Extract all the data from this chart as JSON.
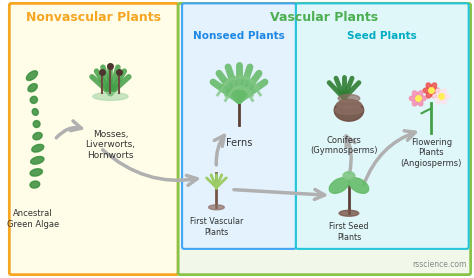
{
  "title": "Nonvascular Plants vs Vascular Plants",
  "bg_color": "#ffffff",
  "nonvascular_bg": "#fffde7",
  "nonvascular_border": "#f5a623",
  "vascular_bg": "#f1f8e9",
  "vascular_border": "#8bc34a",
  "nonseed_bg": "#e3f2fd",
  "nonseed_border": "#42a5f5",
  "seed_bg": "#e0f7fa",
  "seed_border": "#26c6da",
  "nonvascular_title": "Nonvascular Plants",
  "vascular_title": "Vascular Plants",
  "nonseed_title": "Nonseed Plants",
  "seed_title": "Seed Plants",
  "nonvascular_title_color": "#f5a623",
  "vascular_title_color": "#4caf50",
  "nonseed_title_color": "#1e88e5",
  "seed_title_color": "#00acc1",
  "label_mosses": "Mosses,\nLiverworts,\nHornworts",
  "label_ferns": "Ferns",
  "label_conifers": "Conifers\n(Gymnosperms)",
  "label_flowering": "Flowering\nPlants\n(Angiosperms)",
  "label_ancestral": "Ancestral\nGreen Algae",
  "label_first_vascular": "First Vascular\nPlants",
  "label_first_seed": "First Seed\nPlants",
  "label_credit": "rsscience.com"
}
